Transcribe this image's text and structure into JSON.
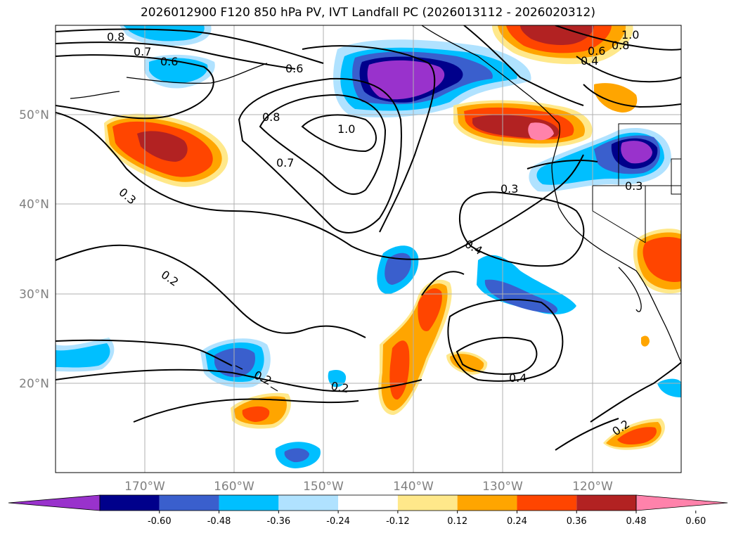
{
  "title": "2026012900 F120 850 hPa PV, IVT Landfall PC (2026013112 - 2026020312)",
  "latitude_labels": [
    "50°N",
    "40°N",
    "30°N",
    "20°N"
  ],
  "longitude_labels": [
    "170°W",
    "160°W",
    "150°W",
    "140°W",
    "130°W",
    "120°W"
  ],
  "contour_labels": [
    "0.8",
    "0.7",
    "0.6",
    "0.6",
    "0.8",
    "1.0",
    "0.7",
    "1.0",
    "0.8",
    "0.6",
    "0.4",
    "0.3",
    "0.3",
    "0.3",
    "0.4",
    "0.2",
    "0.2",
    "0.2",
    "0.4",
    "0.2"
  ],
  "colorbar": {
    "ticks": [
      "-0.60",
      "-0.48",
      "-0.36",
      "-0.24",
      "-0.12",
      "0.12",
      "0.24",
      "0.36",
      "0.48",
      "0.60"
    ],
    "colors": [
      "#9932CC",
      "#00008B",
      "#3A5FCD",
      "#00BFFF",
      "#B0E2FF",
      "#FFFFFF",
      "#FFE88A",
      "#FFA500",
      "#FF4500",
      "#B22222",
      "#FF82AB"
    ]
  }
}
